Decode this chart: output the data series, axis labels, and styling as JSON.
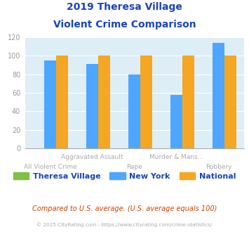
{
  "title_line1": "2019 Theresa Village",
  "title_line2": "Violent Crime Comparison",
  "categories": [
    "All Violent Crime",
    "Aggravated Assault",
    "Rape",
    "Murder & Mans...",
    "Robbery"
  ],
  "cat_row": [
    1,
    0,
    1,
    0,
    1
  ],
  "series": {
    "Theresa Village": [
      0,
      0,
      0,
      0,
      0
    ],
    "New York": [
      95,
      91,
      80,
      58,
      114
    ],
    "National": [
      100,
      100,
      100,
      100,
      100
    ]
  },
  "colors": {
    "Theresa Village": "#7dc242",
    "New York": "#4da6ff",
    "National": "#f5a623"
  },
  "ylim": [
    0,
    120
  ],
  "yticks": [
    0,
    20,
    40,
    60,
    80,
    100,
    120
  ],
  "background_color": "#ddeef6",
  "title_color": "#1a44bb",
  "legend_color": "#1a44bb",
  "footer_text": "Compared to U.S. average. (U.S. average equals 100)",
  "copyright_text": "© 2025 CityRating.com - https://www.cityrating.com/crime-statistics/",
  "bar_width": 0.28
}
